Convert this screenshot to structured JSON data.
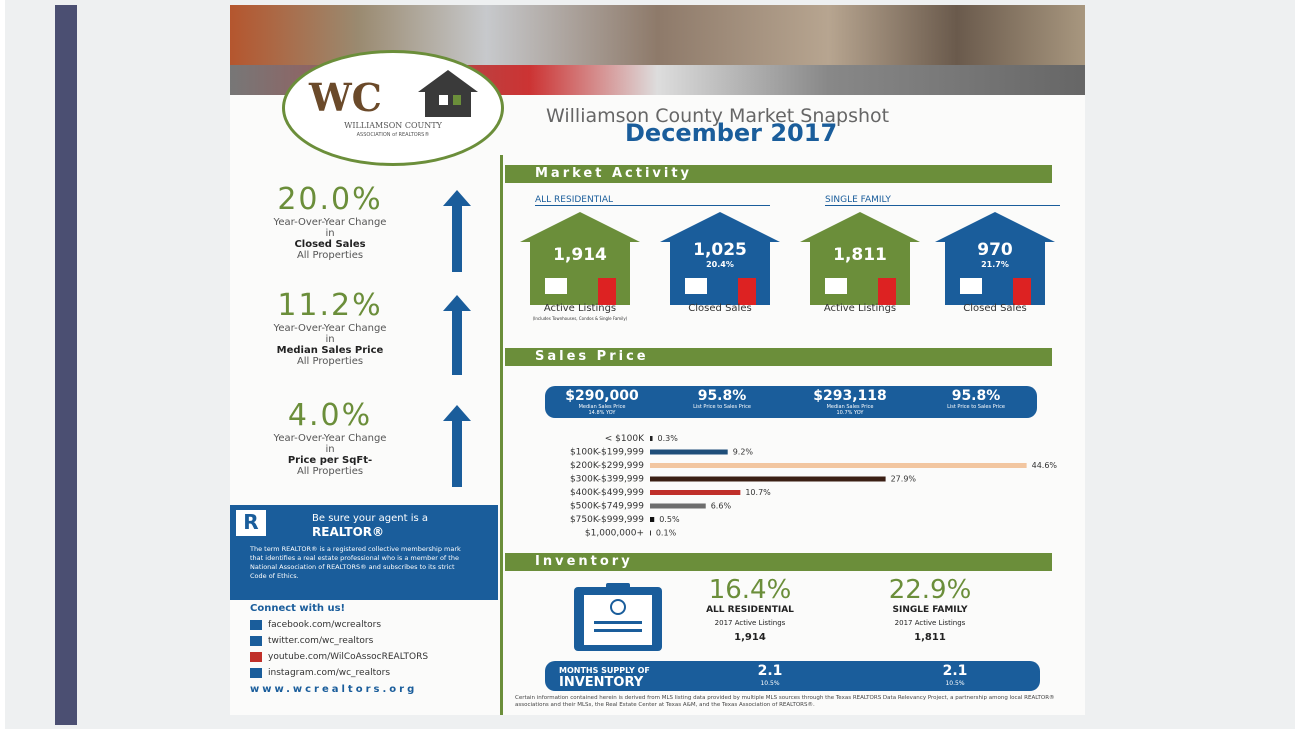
{
  "header": {
    "logo": "WC",
    "org": "WILLIAMSON COUNTY",
    "org_sub": "ASSOCIATION of REALTORS®",
    "title": "Williamson County Market Snapshot",
    "subtitle": "December 2017"
  },
  "stats": [
    {
      "value": "20.0%",
      "text": "Year-Over-Year Change in",
      "bold": "Closed Sales",
      "sub": "All Properties"
    },
    {
      "value": "11.2%",
      "text": "Year-Over-Year Change in",
      "bold": "Median Sales Price",
      "sub": "All Properties"
    },
    {
      "value": "4.0%",
      "text": "Year-Over-Year Change in",
      "bold": "Price per SqFt-",
      "sub": "All Properties"
    }
  ],
  "realtor": {
    "title": "Be sure your agent is a",
    "title2": "REALTOR®",
    "body": "The term REALTOR® is a registered collective membership mark that identifies a real estate professional who is a member of the National Association of REALTORS® and subscribes to its strict Code of Ethics."
  },
  "connect": {
    "title": "Connect with us!",
    "links": [
      "facebook.com/wcrealtors",
      "twitter.com/wc_realtors",
      "youtube.com/WilCoAssocREALTORS",
      "instagram.com/wc_realtors"
    ],
    "website": "www.wcrealtors.org"
  },
  "market_activity": {
    "heading": "Market Activity",
    "groups": [
      {
        "label": "ALL RESIDENTIAL",
        "houses": [
          {
            "value": "1,914",
            "caption": "Active Listings",
            "note": "(Includes Townhouses, Condos & Single Family)"
          },
          {
            "value": "1,025",
            "change": "20.4%",
            "caption": "Closed Sales"
          }
        ]
      },
      {
        "label": "SINGLE FAMILY",
        "houses": [
          {
            "value": "1,811",
            "caption": "Active Listings"
          },
          {
            "value": "970",
            "change": "21.7%",
            "caption": "Closed Sales"
          }
        ]
      }
    ]
  },
  "sales_price": {
    "heading": "Sales Price",
    "stats": [
      {
        "value": "$290,000",
        "label": "Median Sales Price",
        "change": "14.8% YOY"
      },
      {
        "value": "95.8%",
        "label": "List Price to Sales Price"
      },
      {
        "value": "$293,118",
        "label": "Median Sales Price",
        "change": "10.7% YOY"
      },
      {
        "value": "95.8%",
        "label": "List Price to Sales Price"
      }
    ]
  },
  "chart_data": {
    "type": "bar",
    "categories": [
      "< $100K",
      "$100K-$199,999",
      "$200K-$299,999",
      "$300K-$399,999",
      "$400K-$499,999",
      "$500K-$749,999",
      "$750K-$999,999",
      "$1,000,000+"
    ],
    "values": [
      0.3,
      9.2,
      44.6,
      27.9,
      10.7,
      6.6,
      0.5,
      0.1
    ],
    "value_labels": [
      "0.3%",
      "9.2%",
      "44.6%",
      "27.9%",
      "10.7%",
      "6.6%",
      "0.5%",
      "0.1%"
    ],
    "colors": [
      "#222222",
      "#1f4e79",
      "#f2c6a0",
      "#3b1f14",
      "#c0302a",
      "#6e6e6e",
      "#111111",
      "#111111"
    ],
    "xlim": [
      0,
      45
    ]
  },
  "inventory": {
    "heading": "Inventory",
    "items": [
      {
        "value": "16.4%",
        "label": "ALL RESIDENTIAL",
        "sub": "2017 Active Listings",
        "count": "1,914"
      },
      {
        "value": "22.9%",
        "label": "SINGLE FAMILY",
        "sub": "2017 Active Listings",
        "count": "1,811"
      }
    ],
    "months_label": "MONTHS SUPPLY OF",
    "months_label2": "INVENTORY",
    "months": [
      {
        "value": "2.1",
        "prev": "10.5%"
      },
      {
        "value": "2.1",
        "prev": "10.5%"
      }
    ]
  },
  "footer_note": "Certain information contained herein is derived from MLS listing data provided by multiple MLS sources through the Texas REALTORS Data Relevancy Project, a partnership among local REALTOR® associations and their MLSs, the Real Estate Center at Texas A&M, and the Texas Association of REALTORS®."
}
